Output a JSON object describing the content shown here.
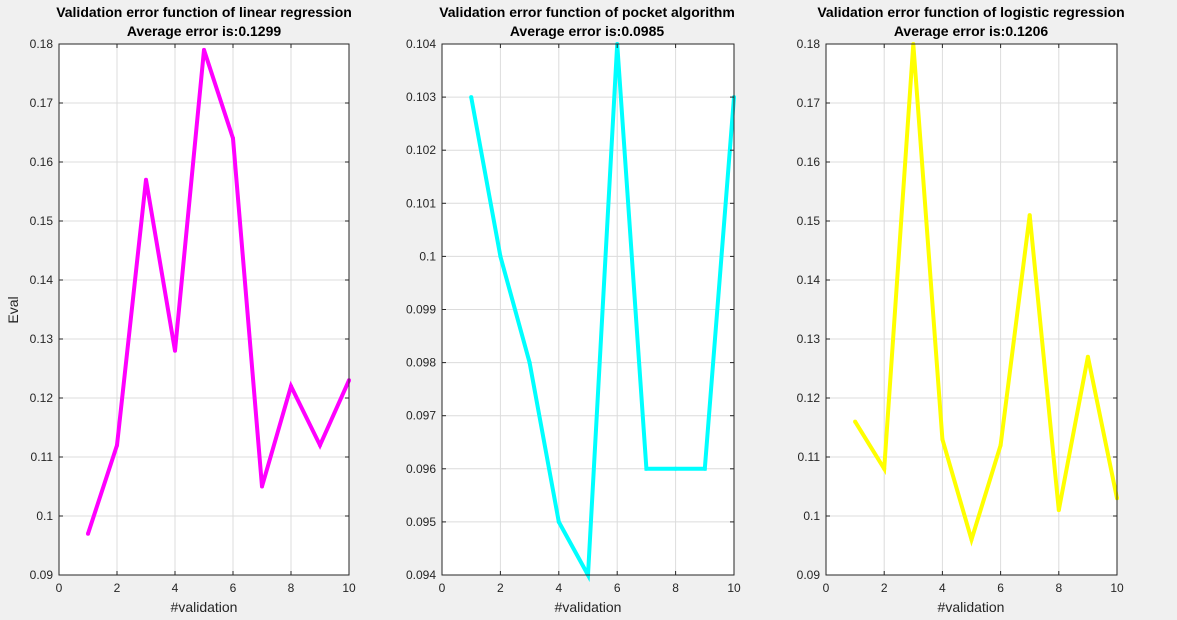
{
  "chart_data": [
    {
      "type": "line",
      "title": "Validation error function of linear regression",
      "subtitle": "Average error is:0.1299",
      "xlabel": "#validation",
      "ylabel": "Eval",
      "xlim": [
        0,
        10
      ],
      "ylim": [
        0.09,
        0.18
      ],
      "xticks": [
        "0",
        "2",
        "4",
        "6",
        "8",
        "10"
      ],
      "yticks": [
        "0.09",
        "0.1",
        "0.11",
        "0.12",
        "0.13",
        "0.14",
        "0.15",
        "0.16",
        "0.17",
        "0.18"
      ],
      "grid": true,
      "color": "#ff00ff",
      "x": [
        1,
        2,
        3,
        4,
        5,
        6,
        7,
        8,
        9,
        10
      ],
      "y": [
        0.097,
        0.112,
        0.157,
        0.128,
        0.179,
        0.164,
        0.105,
        0.122,
        0.112,
        0.123
      ]
    },
    {
      "type": "line",
      "title": "Validation error function of pocket algorithm",
      "subtitle": "Average error is:0.0985",
      "xlabel": "#validation",
      "ylabel": "",
      "xlim": [
        0,
        10
      ],
      "ylim": [
        0.094,
        0.104
      ],
      "xticks": [
        "0",
        "2",
        "4",
        "6",
        "8",
        "10"
      ],
      "yticks": [
        "0.094",
        "0.095",
        "0.096",
        "0.097",
        "0.098",
        "0.099",
        "0.1",
        "0.101",
        "0.102",
        "0.103",
        "0.104"
      ],
      "grid": true,
      "color": "#00ffff",
      "x": [
        1,
        2,
        3,
        4,
        5,
        6,
        7,
        8,
        9,
        10
      ],
      "y": [
        0.103,
        0.1,
        0.098,
        0.095,
        0.094,
        0.104,
        0.096,
        0.096,
        0.096,
        0.103
      ]
    },
    {
      "type": "line",
      "title": "Validation error function of logistic regression",
      "subtitle": "Average error is:0.1206",
      "xlabel": "#validation",
      "ylabel": "",
      "xlim": [
        0,
        10
      ],
      "ylim": [
        0.09,
        0.18
      ],
      "xticks": [
        "0",
        "2",
        "4",
        "6",
        "8",
        "10"
      ],
      "yticks": [
        "0.09",
        "0.1",
        "0.11",
        "0.12",
        "0.13",
        "0.14",
        "0.15",
        "0.16",
        "0.17",
        "0.18"
      ],
      "grid": true,
      "color": "#ffff00",
      "x": [
        1,
        2,
        3,
        4,
        5,
        6,
        7,
        8,
        9,
        10
      ],
      "y": [
        0.116,
        0.108,
        0.18,
        0.113,
        0.096,
        0.112,
        0.151,
        0.101,
        0.127,
        0.103
      ]
    }
  ]
}
